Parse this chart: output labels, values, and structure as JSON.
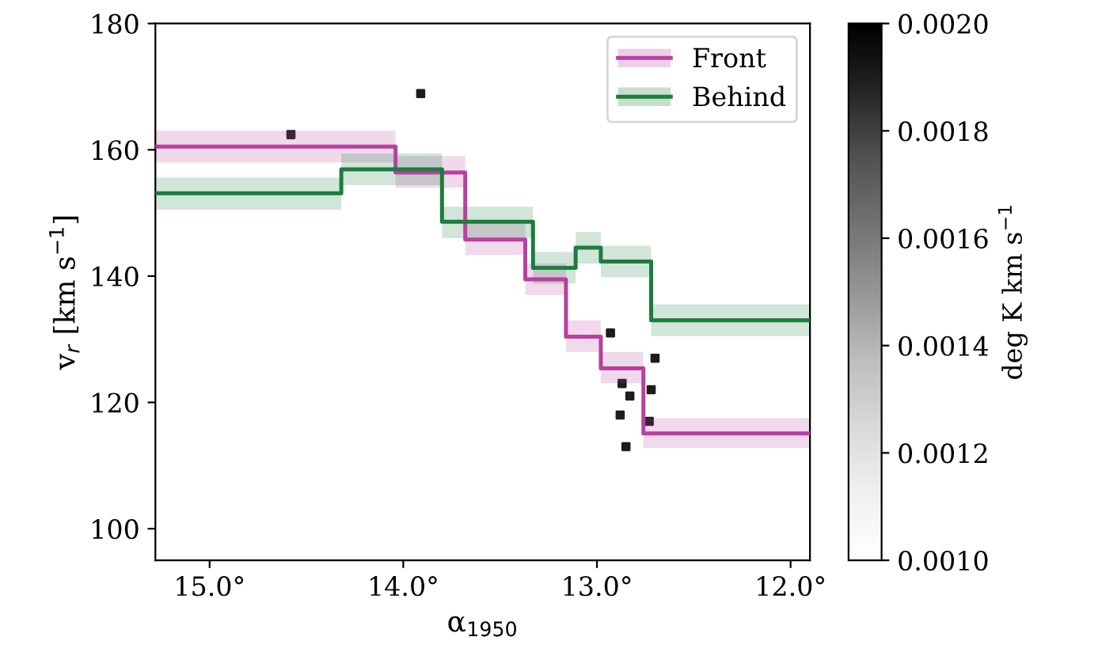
{
  "chart_data": {
    "type": "step",
    "xlabel": "α$_{1950}$",
    "ylabel": "v$_{r}$ [km s$^{−1}$]",
    "clabel": "deg K km s$^{−1}$",
    "xlim": [
      15.28,
      11.9
    ],
    "xticks": [
      {
        "value": 15,
        "label": "15.0°"
      },
      {
        "value": 14,
        "label": "14.0°"
      },
      {
        "value": 13,
        "label": "13.0°"
      },
      {
        "value": 12,
        "label": "12.0°"
      }
    ],
    "ylim": [
      95,
      180
    ],
    "yticks": [
      100,
      120,
      140,
      160,
      180
    ],
    "clim": [
      0.001,
      0.002
    ],
    "cticks": [
      {
        "value": 0.001,
        "label": "0.0010"
      },
      {
        "value": 0.0012,
        "label": "0.0012"
      },
      {
        "value": 0.0014,
        "label": "0.0014"
      },
      {
        "value": 0.0016,
        "label": "0.0016"
      },
      {
        "value": 0.0018,
        "label": "0.0018"
      },
      {
        "value": 0.002,
        "label": "0.0020"
      }
    ],
    "legend": "top right",
    "grid": false,
    "series": [
      {
        "type": "scatter",
        "x": [
          14.58,
          13.91,
          12.93,
          12.88,
          12.87,
          12.85,
          12.83,
          12.72,
          12.73,
          12.7
        ],
        "values": [
          162.4,
          168.9,
          131,
          118,
          123,
          113,
          121,
          122,
          117,
          127
        ],
        "cvalues": [
          0.0019,
          0.0019,
          0.0019,
          0.0019,
          0.0019,
          0.0019,
          0.0019,
          0.0019,
          0.0019,
          0.0019
        ]
      },
      {
        "name": "Front",
        "color": "#b8409f",
        "x": [
          15.28,
          14.04,
          13.68,
          13.37,
          13.16,
          12.98,
          12.76,
          11.9
        ],
        "values": [
          160.5,
          156.4,
          145.8,
          139.5,
          130.4,
          125.4,
          115.1,
          115.1
        ],
        "lower": [
          158,
          154,
          143.3,
          137,
          128,
          123,
          112.8,
          112.8
        ],
        "upper": [
          163,
          159,
          148.3,
          142,
          133,
          128,
          117.5,
          117.5
        ]
      },
      {
        "name": "Behind",
        "color": "#1b7d3c",
        "x": [
          15.28,
          14.32,
          13.8,
          13.33,
          13.11,
          12.98,
          12.72,
          11.9
        ],
        "values": [
          153.1,
          156.9,
          148.6,
          141.3,
          144.5,
          142.3,
          133,
          133
        ],
        "lower": [
          150.5,
          154.4,
          146,
          138.8,
          142,
          139.8,
          130.5,
          130.5
        ],
        "upper": [
          155.6,
          159.4,
          151,
          143.8,
          147,
          144.8,
          135.5,
          135.5
        ]
      }
    ]
  }
}
